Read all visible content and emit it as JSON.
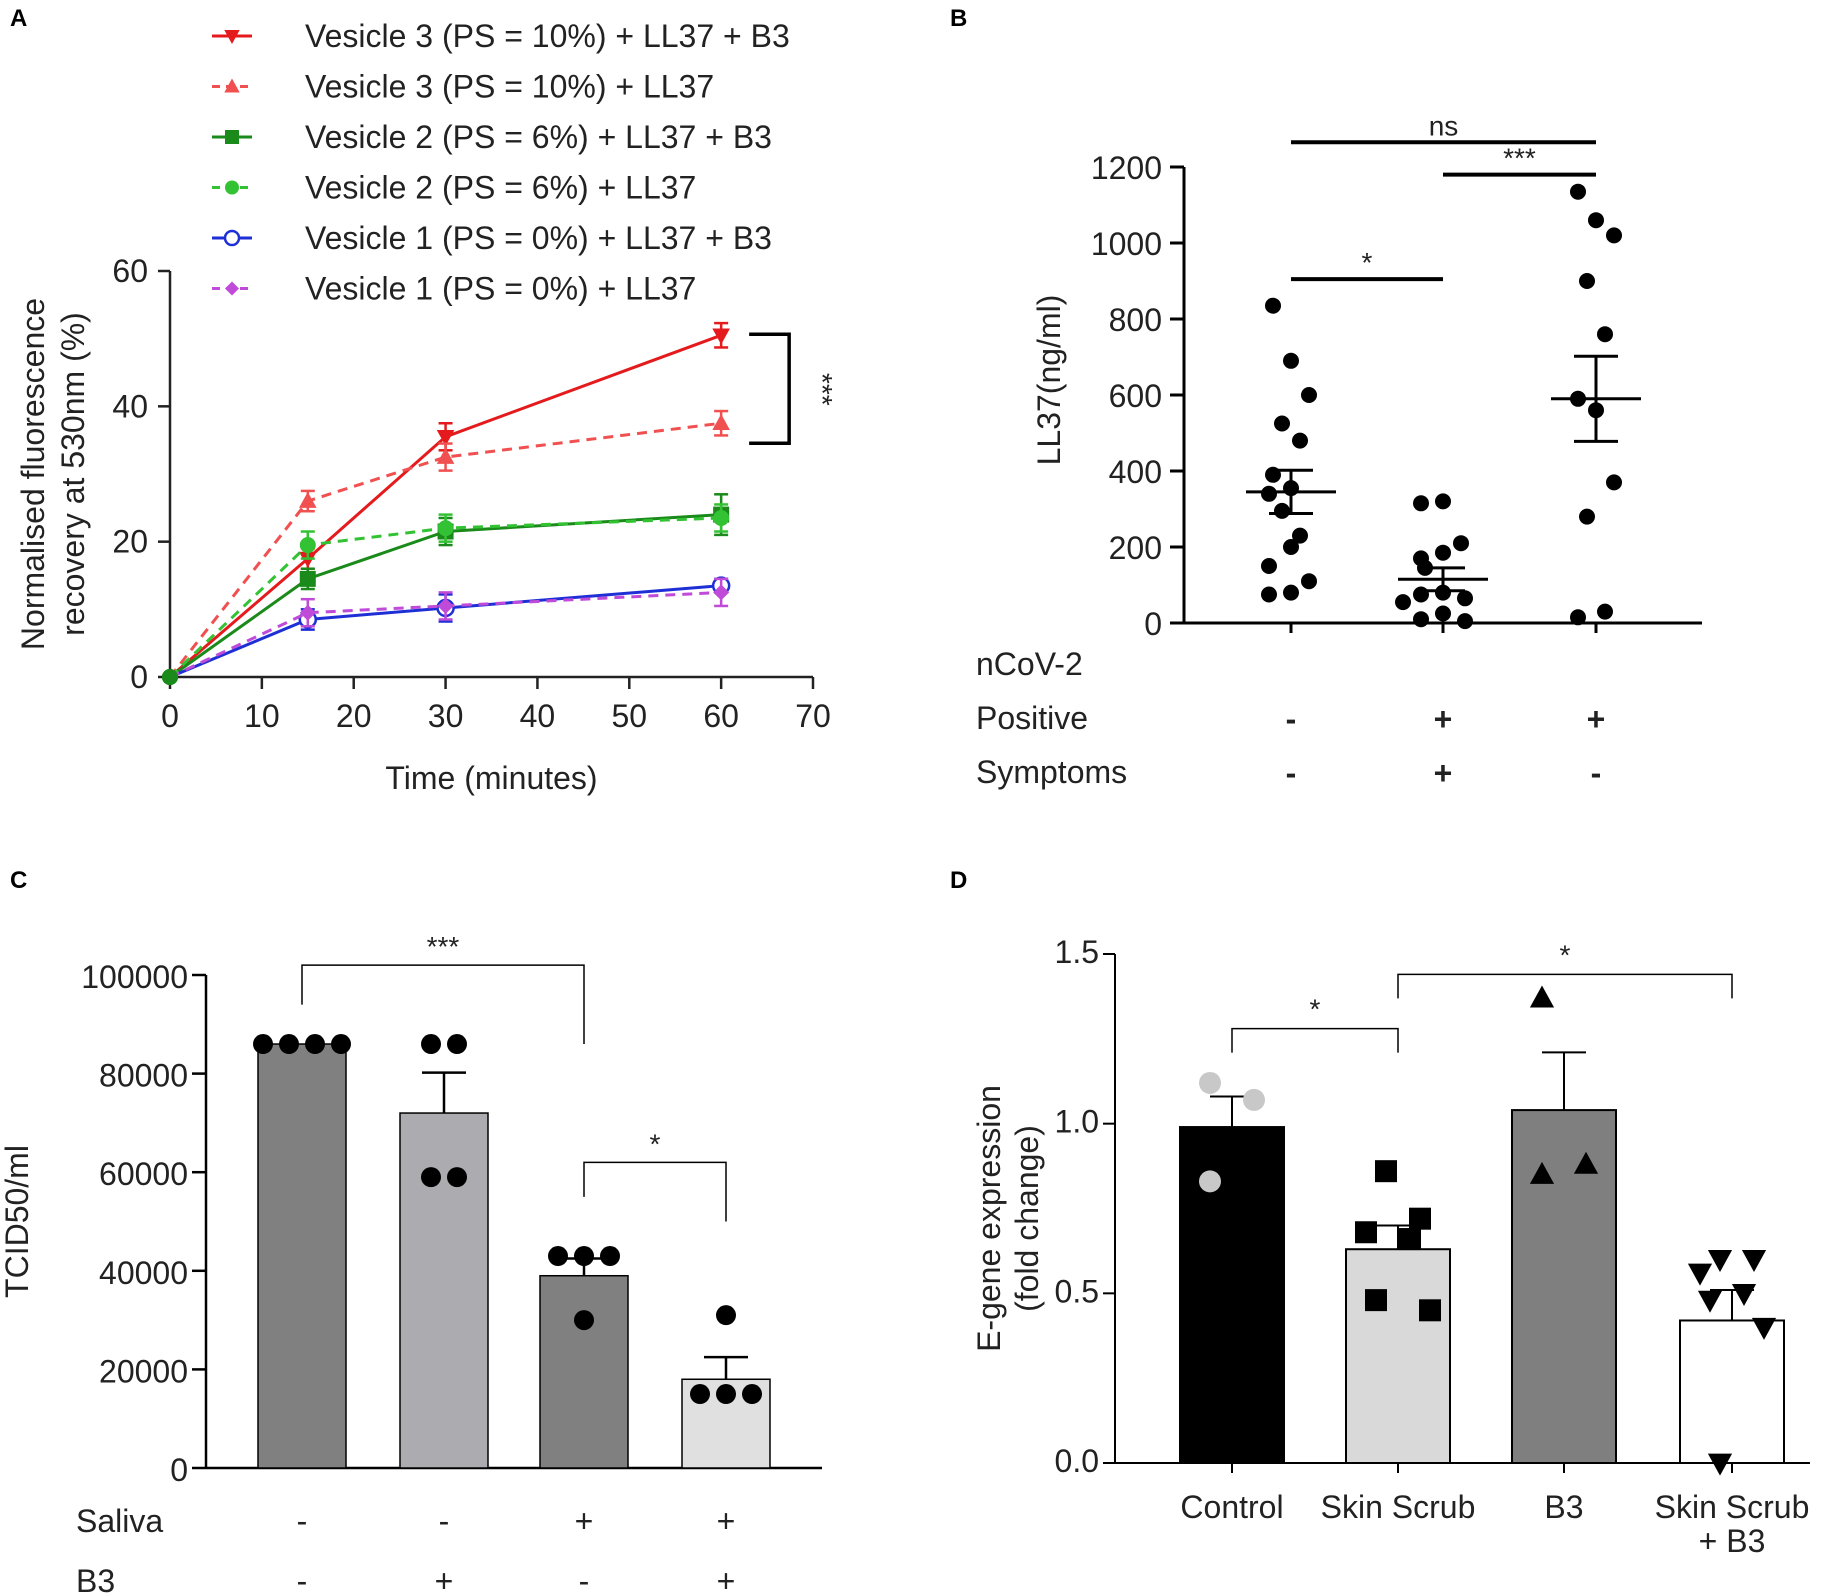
{
  "panel_labels": [
    "A",
    "B",
    "C",
    "D"
  ],
  "chart_data": [
    {
      "panel": "A",
      "type": "line",
      "xlabel": "Time (minutes)",
      "ylabel_lines": [
        "Normalised fluorescence",
        "recovery at 530nm (%)"
      ],
      "xlim": [
        0,
        70
      ],
      "ylim": [
        0,
        60
      ],
      "xticks": [
        0,
        10,
        20,
        30,
        40,
        50,
        60,
        70
      ],
      "yticks": [
        0,
        20,
        40,
        60
      ],
      "x": [
        0,
        15,
        30,
        60
      ],
      "series": [
        {
          "name": "Vesicle 3 (PS = 10%) + LL37 + B3",
          "color": "#e41a1c",
          "dash": false,
          "marker": "triangle-down",
          "values": [
            0,
            17.5,
            35.5,
            50.5
          ],
          "err": [
            0.5,
            1.5,
            2.0,
            1.8
          ]
        },
        {
          "name": "Vesicle 3 (PS = 10%) + LL37",
          "color": "#f05050",
          "dash": true,
          "marker": "triangle-up",
          "values": [
            0,
            26,
            32.5,
            37.5
          ],
          "err": [
            0.5,
            1.5,
            2.0,
            1.8
          ]
        },
        {
          "name": "Vesicle 2 (PS = 6%) + LL37 + B3",
          "color": "#1a8a1a",
          "dash": false,
          "marker": "square",
          "values": [
            0,
            14.5,
            21.5,
            24
          ],
          "err": [
            0.5,
            1.5,
            2.0,
            3.0
          ]
        },
        {
          "name": "Vesicle 2 (PS = 6%) + LL37",
          "color": "#33c233",
          "dash": true,
          "marker": "circle",
          "values": [
            0,
            19.5,
            22,
            23.5
          ],
          "err": [
            0.5,
            2.0,
            2.0,
            2.0
          ]
        },
        {
          "name": "Vesicle 1 (PS = 0%) + LL37 + B3",
          "color": "#1f2fd6",
          "dash": false,
          "marker": "circle-open",
          "values": [
            0,
            8.5,
            10.2,
            13.5
          ],
          "err": [
            0.5,
            1.5,
            2.0,
            1.0
          ]
        },
        {
          "name": "Vesicle 1 (PS = 0%) + LL37",
          "color": "#c04bd8",
          "dash": true,
          "marker": "diamond",
          "values": [
            0,
            9.5,
            10.5,
            12.5
          ],
          "err": [
            0.5,
            2.0,
            2.0,
            2.0
          ]
        }
      ],
      "annotations": [
        {
          "text": "***",
          "between": [
            "Vesicle 3 (PS = 10%) + LL37 + B3",
            "Vesicle 3 (PS = 10%) + LL37"
          ],
          "at_x": 60
        }
      ]
    },
    {
      "panel": "B",
      "type": "scatter",
      "ylabel": "LL37(ng/ml)",
      "ylim": [
        0,
        1200
      ],
      "yticks": [
        0,
        200,
        400,
        600,
        800,
        1000,
        1200
      ],
      "row_labels": [
        "nCoV-2",
        "Positive",
        "Symptoms"
      ],
      "groups": [
        {
          "positive": "-",
          "symptoms": "-",
          "mean": 345,
          "sem": 57,
          "points": [
            835,
            690,
            600,
            525,
            480,
            390,
            355,
            340,
            295,
            230,
            200,
            150,
            110,
            80,
            75
          ]
        },
        {
          "positive": "+",
          "symptoms": "+",
          "mean": 115,
          "sem": 30,
          "points": [
            320,
            315,
            210,
            185,
            170,
            145,
            80,
            75,
            65,
            55,
            25,
            10,
            5
          ]
        },
        {
          "positive": "+",
          "symptoms": "-",
          "mean": 590,
          "sem": 112,
          "points": [
            1135,
            1060,
            1020,
            900,
            760,
            590,
            560,
            370,
            280,
            30,
            15
          ]
        }
      ],
      "annotations": [
        {
          "text": "ns",
          "from_group": 0,
          "to_group": 2,
          "y": 1265
        },
        {
          "text": "***",
          "from_group": 1,
          "to_group": 2,
          "y": 1180
        },
        {
          "text": "*",
          "from_group": 0,
          "to_group": 1,
          "y": 905
        }
      ]
    },
    {
      "panel": "C",
      "type": "bar",
      "ylabel": "TCID50/ml",
      "ylim": [
        0,
        100000
      ],
      "yticks": [
        "0",
        "20000",
        "40000",
        "60000",
        "80000",
        "100000"
      ],
      "row_labels": [
        "Saliva",
        "B3"
      ],
      "bars": [
        {
          "saliva": "-",
          "b3": "-",
          "value": 86000,
          "sem": 0,
          "color": "#808080",
          "points": [
            86000,
            86000,
            86000,
            86000
          ]
        },
        {
          "saliva": "-",
          "b3": "+",
          "value": 72000,
          "sem": 8200,
          "color": "#acacb0",
          "points": [
            86000,
            86000,
            59000,
            59000
          ]
        },
        {
          "saliva": "+",
          "b3": "-",
          "value": 39000,
          "sem": 3500,
          "color": "#808080",
          "points": [
            43000,
            43000,
            43000,
            30000
          ]
        },
        {
          "saliva": "+",
          "b3": "+",
          "value": 18000,
          "sem": 4500,
          "color": "#e0e0e0",
          "points": [
            31000,
            15000,
            15000,
            15000
          ]
        }
      ],
      "annotations": [
        {
          "text": "***",
          "from_bar": 0,
          "to_bar": 2,
          "y": 102000
        },
        {
          "text": "*",
          "from_bar": 2,
          "to_bar": 3,
          "y": 62000
        }
      ]
    },
    {
      "panel": "D",
      "type": "bar",
      "ylabel_lines": [
        "E-gene expression",
        "(fold change)"
      ],
      "ylim": [
        0,
        1.5
      ],
      "yticks": [
        "0.0",
        "0.5",
        "1.0",
        "1.5"
      ],
      "categories": [
        "Control",
        "Skin Scrub",
        "B3",
        "Skin Scrub|+ B3"
      ],
      "bars": [
        {
          "label": "Control",
          "value": 0.99,
          "sem": 0.09,
          "color": "#000000",
          "marker": "circle",
          "marker_color": "#c8c8c8",
          "points": [
            1.12,
            1.07,
            0.83
          ]
        },
        {
          "label": "Skin Scrub",
          "value": 0.63,
          "sem": 0.07,
          "color": "#d9d9d9",
          "marker": "square",
          "marker_color": "#000000",
          "points": [
            0.86,
            0.72,
            0.68,
            0.66,
            0.48,
            0.45
          ]
        },
        {
          "label": "B3",
          "value": 1.04,
          "sem": 0.17,
          "color": "#7f7f7f",
          "marker": "triangle-up",
          "marker_color": "#000000",
          "points": [
            1.37,
            0.88,
            0.85
          ]
        },
        {
          "label": "Skin Scrub + B3",
          "value": 0.42,
          "sem": 0.09,
          "color": "#ffffff",
          "marker": "triangle-down",
          "marker_color": "#000000",
          "points": [
            0.6,
            0.6,
            0.56,
            0.5,
            0.48,
            0.4,
            0.0
          ]
        }
      ],
      "annotations": [
        {
          "text": "*",
          "from_bar": 0,
          "to_bar": 1,
          "y": 1.28
        },
        {
          "text": "*",
          "from_bar": 1,
          "to_bar": 3,
          "y": 1.44
        }
      ]
    }
  ]
}
